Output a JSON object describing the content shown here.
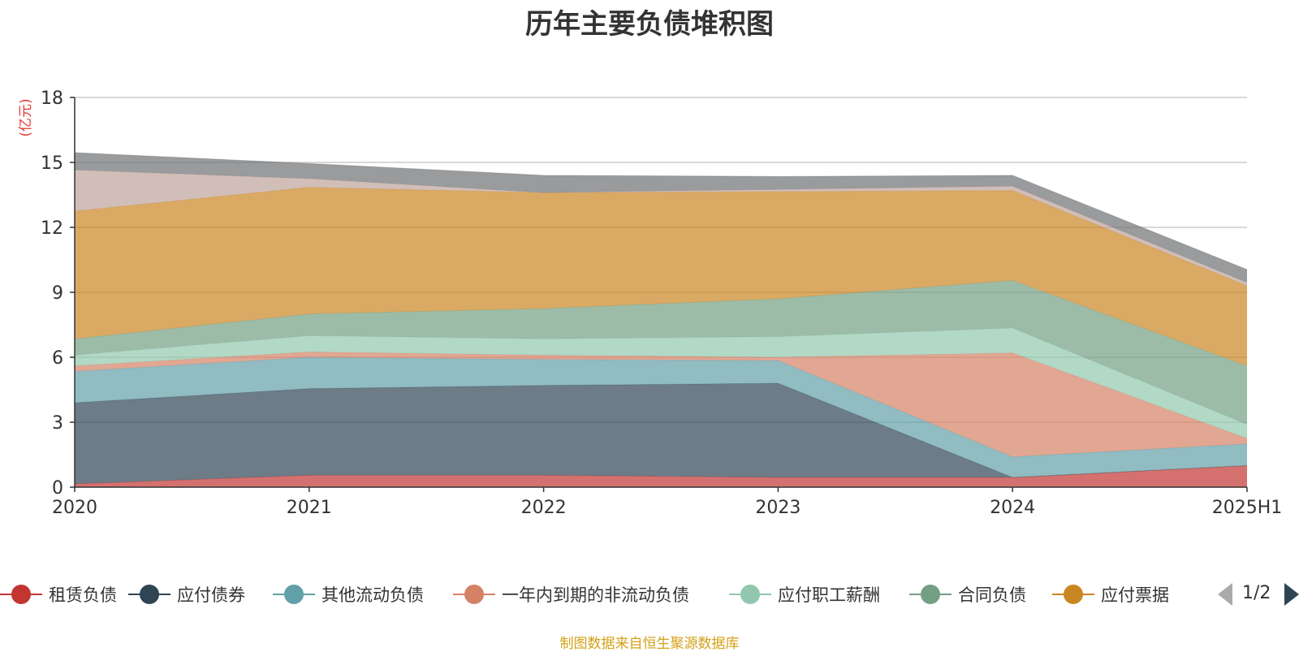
{
  "chart_data": {
    "type": "area",
    "stacked": true,
    "title": "历年主要负债堆积图",
    "ylabel": "(亿元)",
    "xlabel": "",
    "categories": [
      "2020",
      "2021",
      "2022",
      "2023",
      "2024",
      "2025H1"
    ],
    "ylim": [
      0,
      18
    ],
    "yticks": [
      0,
      3,
      6,
      9,
      12,
      15,
      18
    ],
    "grid": true,
    "legend_position": "bottom",
    "series": [
      {
        "name": "租赁负债",
        "color": "#c23531",
        "values": [
          0.15,
          0.55,
          0.55,
          0.45,
          0.45,
          1.0
        ]
      },
      {
        "name": "应付债券",
        "color": "#2f4554",
        "values": [
          3.75,
          4.0,
          4.15,
          4.35,
          0.0,
          0.0
        ]
      },
      {
        "name": "其他流动负债",
        "color": "#61a0a8",
        "values": [
          1.45,
          1.45,
          1.2,
          1.05,
          0.95,
          1.0
        ]
      },
      {
        "name": "一年内到期的非流动负债",
        "color": "#d48265",
        "values": [
          0.25,
          0.25,
          0.2,
          0.15,
          4.8,
          0.25
        ]
      },
      {
        "name": "应付职工薪酬",
        "color": "#91c7ae",
        "values": [
          0.5,
          0.75,
          0.75,
          0.95,
          1.15,
          0.65
        ]
      },
      {
        "name": "合同负债",
        "color": "#749f83",
        "values": [
          0.75,
          1.0,
          1.4,
          1.75,
          2.2,
          2.7
        ]
      },
      {
        "name": "应付票据",
        "color": "#ca8622",
        "values": [
          5.9,
          5.85,
          5.35,
          4.95,
          4.15,
          3.7
        ]
      },
      {
        "name": "",
        "color": "#bda29a",
        "values": [
          1.9,
          0.4,
          0.0,
          0.1,
          0.2,
          0.15
        ]
      },
      {
        "name": "",
        "color": "#6e7074",
        "values": [
          0.8,
          0.7,
          0.8,
          0.6,
          0.5,
          0.6
        ]
      }
    ]
  },
  "legend": {
    "page": "1/2"
  },
  "source_note": "制图数据来自恒生聚源数据库"
}
